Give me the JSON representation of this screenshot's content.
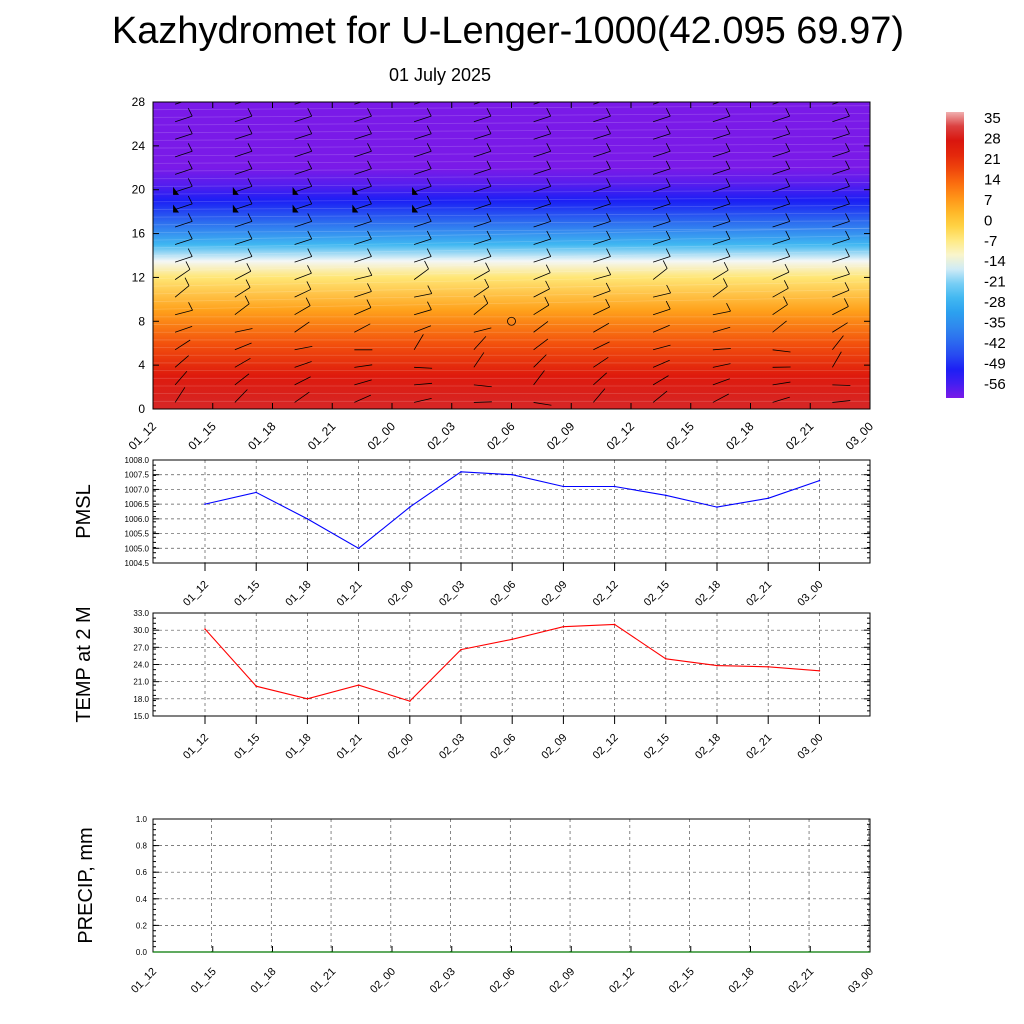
{
  "header": {
    "title": "Kazhydromet for U-Lenger-1000(42.095 69.97)",
    "date": "01 July 2025"
  },
  "colors": {
    "pmsl_line": "#0000ff",
    "temp_line": "#ff0000",
    "precip_line": "#007700",
    "grid": "#555555"
  },
  "chart_data": [
    {
      "type": "heatmap",
      "name": "cross-section",
      "x_tick_labels": [
        "01_12",
        "01_15",
        "01_18",
        "01_21",
        "02_00",
        "02_03",
        "02_06",
        "02_09",
        "02_12",
        "02_15",
        "02_18",
        "02_21",
        "03_00"
      ],
      "y_ticks": [
        0,
        4,
        8,
        12,
        16,
        20,
        24,
        28
      ],
      "ylim": [
        0,
        28
      ],
      "colorbar_labels": [
        "35",
        "28",
        "21",
        "14",
        "7",
        "0",
        "-7",
        "-14",
        "-21",
        "-28",
        "-35",
        "-42",
        "-49",
        "-56"
      ],
      "colorbar_range": [
        -60,
        38
      ],
      "temperature_profile_by_height": [
        {
          "height": 0,
          "value": 32
        },
        {
          "height": 3,
          "value": 26
        },
        {
          "height": 6,
          "value": 17
        },
        {
          "height": 9,
          "value": 7
        },
        {
          "height": 12,
          "value": -5
        },
        {
          "height": 13.5,
          "value": -14
        },
        {
          "height": 15,
          "value": -26
        },
        {
          "height": 17,
          "value": -40
        },
        {
          "height": 19,
          "value": -50
        },
        {
          "height": 20.5,
          "value": -57
        },
        {
          "height": 22,
          "value": -60
        },
        {
          "height": 28,
          "value": -60
        }
      ]
    },
    {
      "type": "line",
      "name": "pmsl",
      "ylabel": "PMSL",
      "ylim": [
        1004.5,
        1008.0
      ],
      "y_ticks": [
        "1008.0",
        "1007.5",
        "1007.0",
        "1006.5",
        "1006.0",
        "1005.5",
        "1005.0",
        "1004.5"
      ],
      "categories": [
        "01_12",
        "01_15",
        "01_18",
        "01_21",
        "02_00",
        "02_03",
        "02_06",
        "02_09",
        "02_12",
        "02_15",
        "02_18",
        "02_21",
        "03_00"
      ],
      "values": [
        1006.5,
        1006.9,
        1006.0,
        1005.0,
        1006.4,
        1007.6,
        1007.5,
        1007.1,
        1007.1,
        1006.8,
        1006.4,
        1006.7,
        1007.3
      ]
    },
    {
      "type": "line",
      "name": "temp",
      "ylabel": "TEMP at 2 M",
      "ylim": [
        15.0,
        33.0
      ],
      "y_ticks": [
        "33.0",
        "30.0",
        "27.0",
        "24.0",
        "21.0",
        "18.0",
        "15.0"
      ],
      "categories": [
        "01_12",
        "01_15",
        "01_18",
        "01_21",
        "02_00",
        "02_03",
        "02_06",
        "02_09",
        "02_12",
        "02_15",
        "02_18",
        "02_21",
        "03_00"
      ],
      "values": [
        30.2,
        20.2,
        18.0,
        20.4,
        17.6,
        26.6,
        28.4,
        30.6,
        31.0,
        25.0,
        23.8,
        23.6,
        22.9
      ]
    },
    {
      "type": "line",
      "name": "precip",
      "ylabel": "PRECIP, mm",
      "ylim": [
        0.0,
        1.0
      ],
      "y_ticks": [
        "1.0",
        "0.8",
        "0.6",
        "0.4",
        "0.2",
        "0.0"
      ],
      "x_tick_labels": [
        "01_12",
        "01_15",
        "01_18",
        "01_21",
        "02_00",
        "02_03",
        "02_06",
        "02_09",
        "02_12",
        "02_15",
        "02_18",
        "02_21",
        "03_00"
      ],
      "values": [
        0,
        0,
        0,
        0,
        0,
        0,
        0,
        0,
        0,
        0,
        0,
        0,
        0
      ]
    }
  ]
}
